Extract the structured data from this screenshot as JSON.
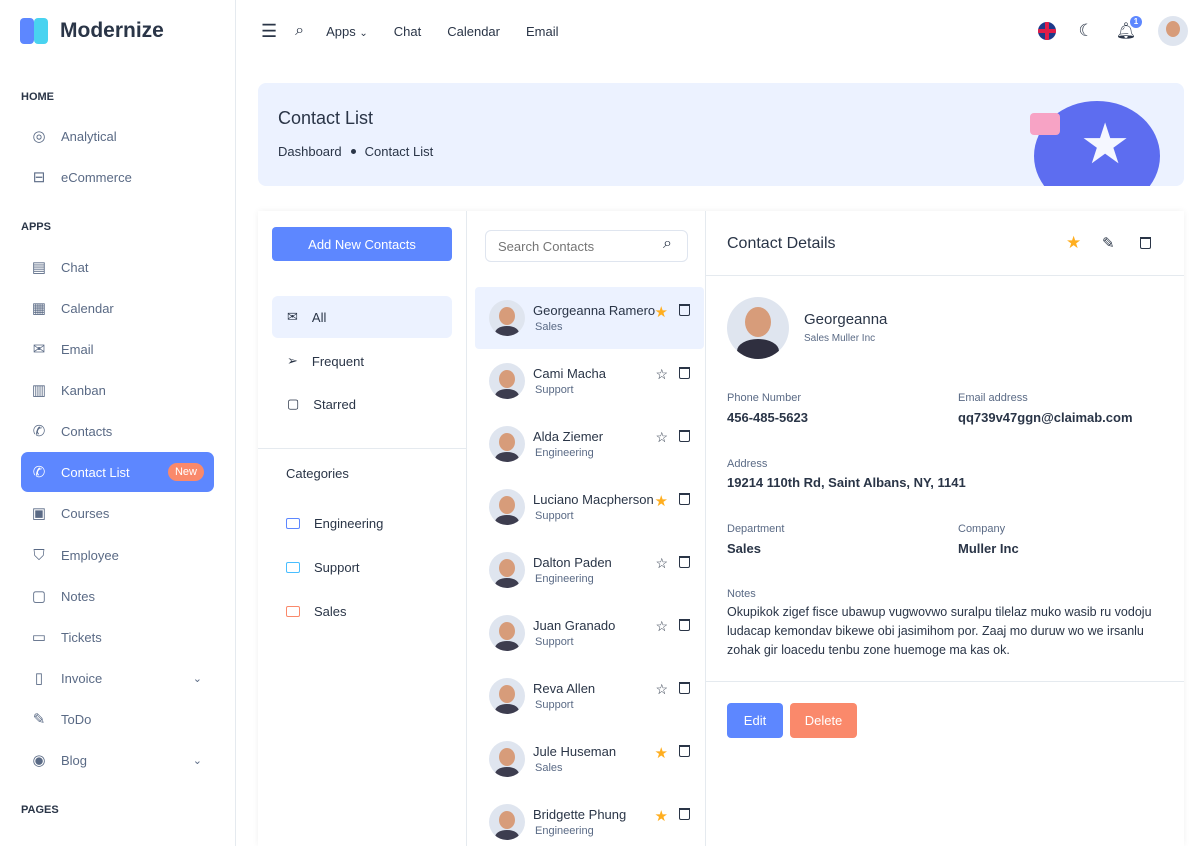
{
  "brand": {
    "name": "Modernize"
  },
  "sidebar": {
    "sections": [
      "HOME",
      "APPS",
      "PAGES"
    ],
    "items": [
      {
        "label": "Analytical",
        "icon": "aperture-icon"
      },
      {
        "label": "eCommerce",
        "icon": "cart-icon"
      },
      {
        "label": "Chat",
        "icon": "message-icon"
      },
      {
        "label": "Calendar",
        "icon": "calendar-icon"
      },
      {
        "label": "Email",
        "icon": "mail-icon"
      },
      {
        "label": "Kanban",
        "icon": "kanban-icon"
      },
      {
        "label": "Contacts",
        "icon": "phone-icon"
      },
      {
        "label": "Contact List",
        "icon": "phone-icon",
        "badge": "New",
        "active": true
      },
      {
        "label": "Courses",
        "icon": "courses-icon"
      },
      {
        "label": "Employee",
        "icon": "shield-icon"
      },
      {
        "label": "Notes",
        "icon": "note-icon"
      },
      {
        "label": "Tickets",
        "icon": "ticket-icon"
      },
      {
        "label": "Invoice",
        "icon": "invoice-icon",
        "expandable": true
      },
      {
        "label": "ToDo",
        "icon": "edit-icon"
      },
      {
        "label": "Blog",
        "icon": "blog-icon",
        "expandable": true
      }
    ]
  },
  "topbar": {
    "links": [
      "Apps",
      "Chat",
      "Calendar",
      "Email"
    ],
    "notification_count": "1"
  },
  "banner": {
    "title": "Contact List",
    "breadcrumb": [
      "Dashboard",
      "Contact List"
    ]
  },
  "filters": {
    "add_button": "Add New Contacts",
    "items": [
      "All",
      "Frequent",
      "Starred"
    ],
    "categories_title": "Categories",
    "categories": [
      {
        "label": "Engineering",
        "color": "#5d87ff"
      },
      {
        "label": "Support",
        "color": "#49beff"
      },
      {
        "label": "Sales",
        "color": "#fa896b"
      }
    ]
  },
  "contacts": {
    "search_placeholder": "Search Contacts",
    "list": [
      {
        "name": "Georgeanna Ramero",
        "dept": "Sales",
        "starred": true,
        "active": true
      },
      {
        "name": "Cami Macha",
        "dept": "Support",
        "starred": false
      },
      {
        "name": "Alda Ziemer",
        "dept": "Engineering",
        "starred": false
      },
      {
        "name": "Luciano Macpherson",
        "dept": "Support",
        "starred": true
      },
      {
        "name": "Dalton Paden",
        "dept": "Engineering",
        "starred": false
      },
      {
        "name": "Juan Granado",
        "dept": "Support",
        "starred": false
      },
      {
        "name": "Reva Allen",
        "dept": "Support",
        "starred": false
      },
      {
        "name": "Jule Huseman",
        "dept": "Sales",
        "starred": true
      },
      {
        "name": "Bridgette Phung",
        "dept": "Engineering",
        "starred": true
      }
    ]
  },
  "details": {
    "title": "Contact Details",
    "name": "Georgeanna",
    "subtitle": "Sales Muller Inc",
    "phone_label": "Phone Number",
    "phone": "456-485-5623",
    "email_label": "Email address",
    "email": "qq739v47ggn@claimab.com",
    "address_label": "Address",
    "address": "19214 110th Rd, Saint Albans, NY, 1141",
    "department_label": "Department",
    "department": "Sales",
    "company_label": "Company",
    "company": "Muller Inc",
    "notes_label": "Notes",
    "notes": "Okupikok zigef fisce ubawup vugwovwo suralpu tilelaz muko wasib ru vodoju ludacap kemondav bikewe obi jasimihom por. Zaaj mo duruw wo we irsanlu zohak gir loacedu tenbu zone huemoge ma kas ok.",
    "edit_label": "Edit",
    "delete_label": "Delete"
  },
  "colors": {
    "primary": "#5d87ff",
    "accent": "#fa896b",
    "star": "#ffae1f",
    "light": "#ecf2ff"
  }
}
